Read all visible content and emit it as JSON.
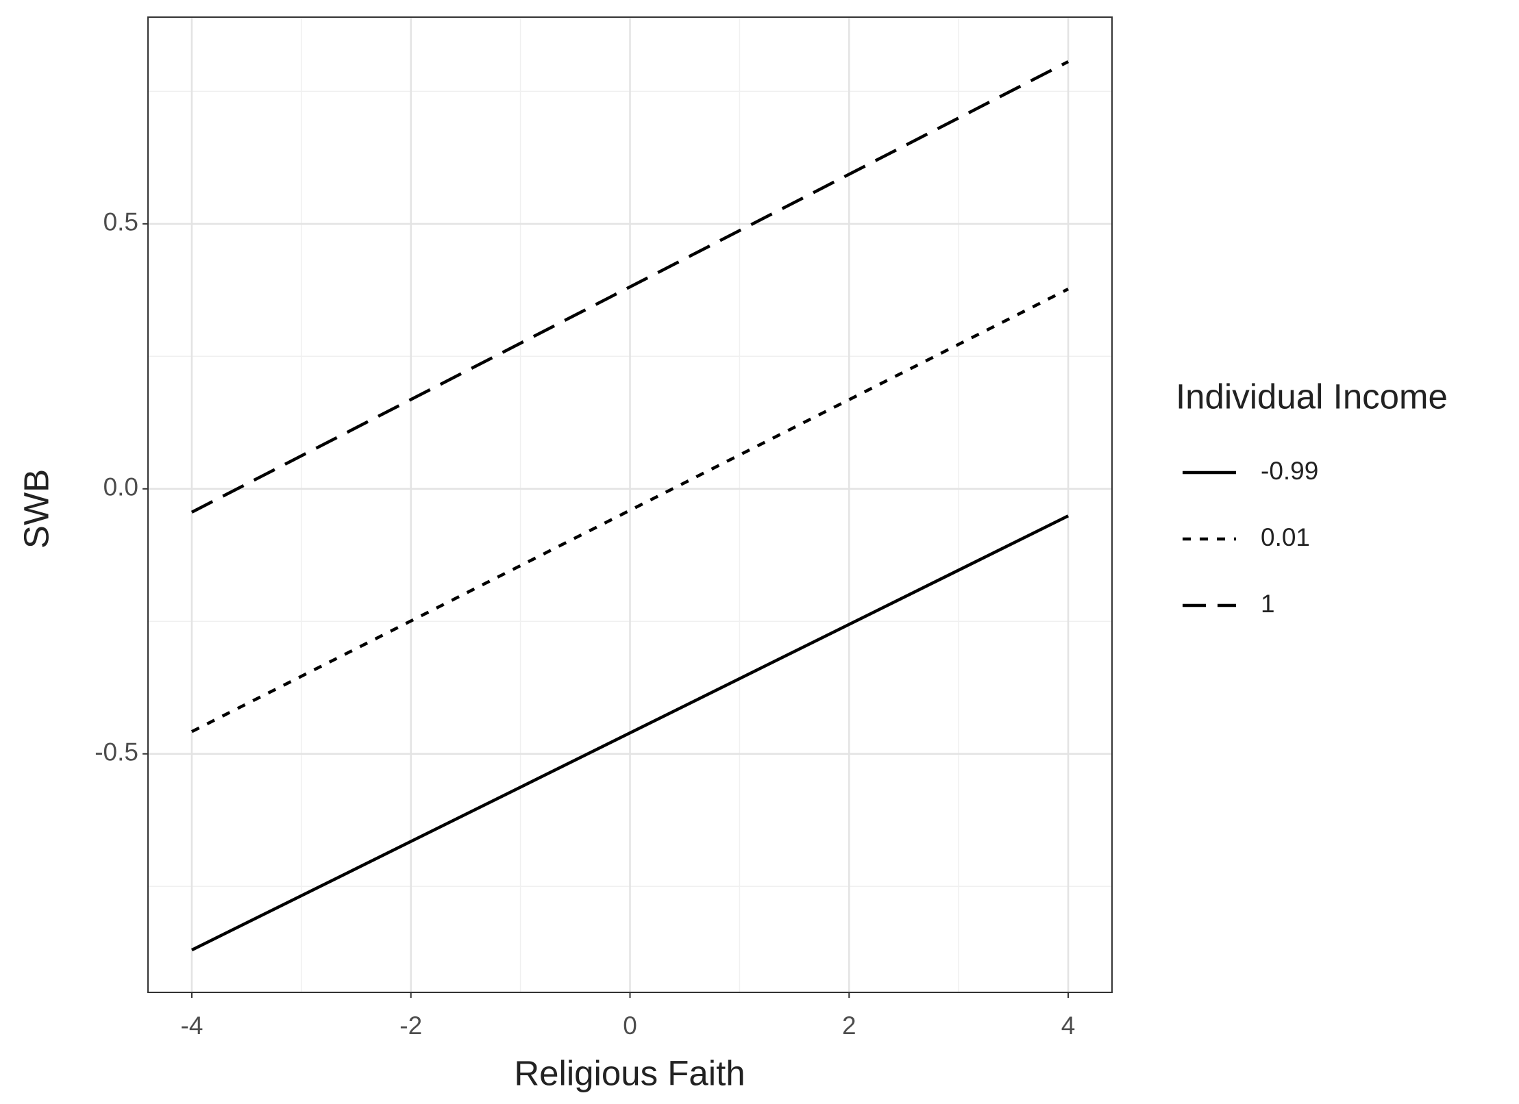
{
  "chart_data": {
    "type": "line",
    "x_label": "Religious Faith",
    "y_label": "SWB",
    "legend_title": "Individual Income",
    "legend": "right",
    "x": [
      -4,
      4
    ],
    "series": [
      {
        "name": "-0.99",
        "color": "#000000",
        "linestyle": "solid",
        "values": [
          -0.87,
          -0.051
        ]
      },
      {
        "name": "0.01",
        "color": "#000000",
        "linestyle": "dotted",
        "values": [
          -0.458,
          0.377
        ]
      },
      {
        "name": "1",
        "color": "#000000",
        "linestyle": "dashed",
        "values": [
          -0.044,
          0.806
        ]
      }
    ],
    "xlim": [
      -4.4,
      4.4
    ],
    "xticks": [
      -4,
      -2,
      0,
      2,
      4
    ],
    "ylim": [
      -0.95,
      0.89
    ],
    "yticks": [
      -0.5,
      {
        "value": 0,
        "label": "0.0"
      },
      0.5
    ],
    "grid": true
  }
}
